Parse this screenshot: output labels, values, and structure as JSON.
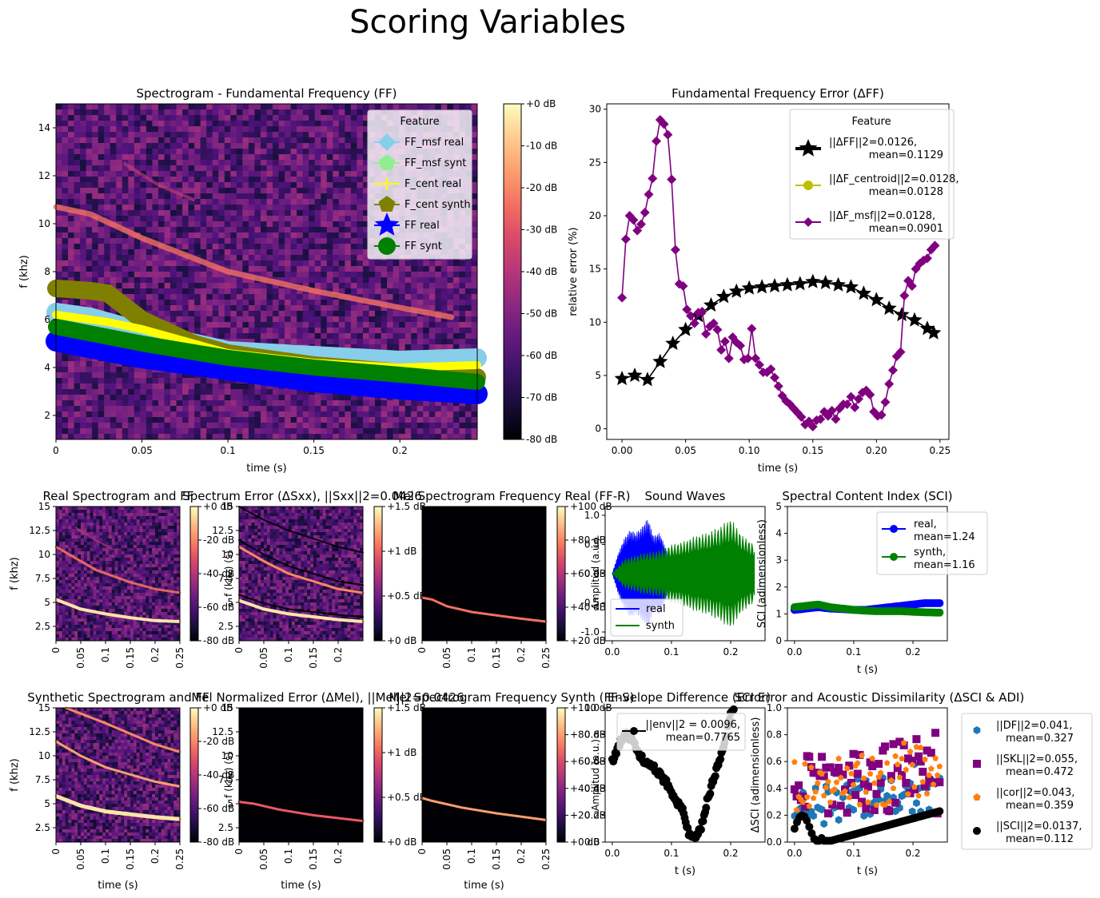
{
  "suptitle": "Scoring Variables",
  "colors": {
    "ff_msf_real": "#87ceeb",
    "ff_msf_synt": "#90ee90",
    "f_cent_real": "#ffff00",
    "f_cent_synth": "#808000",
    "ff_real": "#0000ff",
    "ff_synt": "#008000",
    "delta_ff": "#000000",
    "delta_centroid": "#bfbf00",
    "delta_msf": "#800080",
    "real": "#0000ff",
    "synth": "#008000",
    "df": "#1f77b4",
    "skl": "#800080",
    "cor": "#ff7f0e",
    "sci": "#000000"
  },
  "chart_data": [
    {
      "id": "spectrogram_ff",
      "type": "heatmap",
      "title": "Spectrogram - Fundamental Frequency (FF)",
      "xlabel": "time (s)",
      "ylabel": "f (khz)",
      "xlim": [
        0,
        0.245
      ],
      "ylim": [
        1,
        15
      ],
      "xticks": [
        "0",
        "0.05",
        "0.1",
        "0.15",
        "0.2"
      ],
      "yticks": [
        "2",
        "4",
        "6",
        "8",
        "10",
        "12",
        "14"
      ],
      "colorbar_ticks": [
        "+0 dB",
        "-10 dB",
        "-20 dB",
        "-30 dB",
        "-40 dB",
        "-50 dB",
        "-60 dB",
        "-70 dB",
        "-80 dB"
      ],
      "legend_title": "Feature",
      "legend": [
        "FF_msf real",
        "FF_msf synt",
        "F_cent real",
        "F_cent synth",
        "FF real",
        "FF synt"
      ],
      "series": [
        {
          "key": "ff_msf_real",
          "x": [
            0,
            0.02,
            0.05,
            0.1,
            0.15,
            0.2,
            0.245
          ],
          "y": [
            6.3,
            6.1,
            5.5,
            4.7,
            4.5,
            4.3,
            4.4
          ]
        },
        {
          "key": "f_cent_synth",
          "x": [
            0,
            0.02,
            0.03,
            0.05,
            0.08,
            0.1,
            0.15,
            0.2,
            0.245
          ],
          "y": [
            7.3,
            7.2,
            7.1,
            6.0,
            5.0,
            4.6,
            4.1,
            3.8,
            3.6
          ]
        },
        {
          "key": "f_cent_real",
          "x": [
            0,
            0.03,
            0.05,
            0.1,
            0.15,
            0.2,
            0.245
          ],
          "y": [
            6.2,
            5.9,
            5.6,
            4.6,
            4.2,
            4.0,
            4.1
          ]
        },
        {
          "key": "ff_real",
          "x": [
            0,
            0.05,
            0.1,
            0.15,
            0.2,
            0.245
          ],
          "y": [
            5.1,
            4.4,
            3.9,
            3.4,
            3.1,
            2.9
          ]
        },
        {
          "key": "ff_synt",
          "x": [
            0,
            0.05,
            0.1,
            0.15,
            0.2,
            0.245
          ],
          "y": [
            5.7,
            5.0,
            4.4,
            4.0,
            3.7,
            3.4
          ]
        }
      ]
    },
    {
      "id": "ff_error",
      "type": "line",
      "title": "Fundamental Frequency Error (ΔFF)",
      "xlabel": "time (s)",
      "ylabel": "relative error (%)",
      "xlim": [
        -0.012,
        0.257
      ],
      "ylim": [
        -1,
        30.5
      ],
      "xticks": [
        "0.00",
        "0.05",
        "0.10",
        "0.15",
        "0.20",
        "0.25"
      ],
      "yticks": [
        "0",
        "5",
        "10",
        "15",
        "20",
        "25",
        "30"
      ],
      "legend_title": "Feature",
      "legend": [
        "||ΔFF||2=0.0126, mean=0.1129",
        "||ΔF_centroid||2=0.0128, mean=0.0128",
        "||ΔF_msf||2=0.0128, mean=0.0901"
      ],
      "series": [
        {
          "key": "delta_ff",
          "marker": "star",
          "x": [
            0,
            0.01,
            0.02,
            0.03,
            0.04,
            0.05,
            0.06,
            0.07,
            0.08,
            0.09,
            0.1,
            0.11,
            0.12,
            0.13,
            0.14,
            0.15,
            0.16,
            0.17,
            0.18,
            0.19,
            0.2,
            0.21,
            0.22,
            0.23,
            0.24,
            0.245
          ],
          "y": [
            4.7,
            5.0,
            4.6,
            6.3,
            8.0,
            9.3,
            10.6,
            11.6,
            12.4,
            12.9,
            13.2,
            13.3,
            13.4,
            13.5,
            13.6,
            13.8,
            13.7,
            13.5,
            13.3,
            12.7,
            12.1,
            11.3,
            10.7,
            10.2,
            9.4,
            9.0
          ]
        },
        {
          "key": "delta_msf",
          "marker": "diamond",
          "x": [
            0,
            0.003,
            0.006,
            0.009,
            0.012,
            0.015,
            0.018,
            0.021,
            0.024,
            0.027,
            0.03,
            0.033,
            0.036,
            0.039,
            0.042,
            0.045,
            0.048,
            0.051,
            0.054,
            0.057,
            0.06,
            0.063,
            0.066,
            0.069,
            0.072,
            0.075,
            0.078,
            0.081,
            0.084,
            0.087,
            0.09,
            0.093,
            0.096,
            0.099,
            0.102,
            0.105,
            0.108,
            0.111,
            0.114,
            0.117,
            0.12,
            0.123,
            0.126,
            0.129,
            0.132,
            0.135,
            0.138,
            0.141,
            0.144,
            0.147,
            0.15,
            0.153,
            0.156,
            0.159,
            0.162,
            0.165,
            0.168,
            0.171,
            0.174,
            0.177,
            0.18,
            0.183,
            0.186,
            0.189,
            0.192,
            0.195,
            0.198,
            0.201,
            0.204,
            0.207,
            0.21,
            0.213,
            0.216,
            0.219,
            0.222,
            0.225,
            0.228,
            0.231,
            0.234,
            0.237,
            0.24,
            0.243,
            0.246
          ],
          "y": [
            12.3,
            17.8,
            20.0,
            19.6,
            18.6,
            19.2,
            20.3,
            22.0,
            23.5,
            27.0,
            29.0,
            28.6,
            27.6,
            23.4,
            16.8,
            13.6,
            13.4,
            11.2,
            10.6,
            9.9,
            10.9,
            11.0,
            8.9,
            9.6,
            9.9,
            9.3,
            7.4,
            8.2,
            6.6,
            8.6,
            8.1,
            7.8,
            6.5,
            6.6,
            9.4,
            6.6,
            6.0,
            5.3,
            5.3,
            5.6,
            4.8,
            4.0,
            3.1,
            2.6,
            2.3,
            1.9,
            1.5,
            1.1,
            0.4,
            0.7,
            0.2,
            0.8,
            0.9,
            1.6,
            1.2,
            1.7,
            0.9,
            1.9,
            2.3,
            2.3,
            3.0,
            2.0,
            2.8,
            3.4,
            3.6,
            3.2,
            1.6,
            1.2,
            1.3,
            2.5,
            4.2,
            5.5,
            6.8,
            7.2,
            12.5,
            13.9,
            13.4,
            15.0,
            15.5,
            15.8,
            16.0,
            16.8,
            17.2
          ]
        }
      ]
    },
    {
      "id": "real_spec_small",
      "type": "heatmap",
      "title": "Real Spectrogram and FF",
      "ylabel": "f (khz)",
      "xticks": [
        "0",
        "0.05",
        "0.1",
        "0.15",
        "0.2",
        "0.25"
      ],
      "yticks": [
        "2.5",
        "5",
        "7.5",
        "10",
        "12.5",
        "15"
      ],
      "colorbar_ticks": [
        "+0 dB",
        "-20 dB",
        "-40 dB",
        "-60 dB",
        "-80 dB"
      ],
      "colorbar_label": "f (khz) (s)"
    },
    {
      "id": "spectrum_error",
      "type": "heatmap",
      "title": "Spectrum Error (ΔSxx), ||Sxx||2=0.0426",
      "yticks": [
        "2.5",
        "5",
        "7.5",
        "10",
        "12.5",
        "15"
      ],
      "xticks": [
        "0",
        "0.05",
        "0.1",
        "0.15",
        "0.2"
      ],
      "colorbar_ticks": [
        "+1.5 dB",
        "+1 dB",
        "+0.5 dB",
        "+0 dB"
      ]
    },
    {
      "id": "mel_real",
      "type": "heatmap",
      "title": "Mel Spectrogram Frequency Real (FF-R)",
      "xticks": [
        "0",
        "0.05",
        "0.1",
        "0.15",
        "0.2",
        "0.25"
      ],
      "colorbar_ticks": [
        "+100 dB",
        "+80 dB",
        "+60 dB",
        "+40 dB",
        "+20 dB"
      ],
      "colorbar_label": "Amplitud (a.u.)"
    },
    {
      "id": "sound_waves",
      "type": "area",
      "title": "Sound Waves",
      "xticks": [
        "0.0",
        "0.1",
        "0.2"
      ],
      "yticks": [
        "-1.0",
        "-0.5",
        "0.0",
        "0.5",
        "1.0"
      ],
      "legend": [
        "real",
        "synth"
      ],
      "series": [
        {
          "key": "real",
          "x": [
            0,
            0.01,
            0.02,
            0.03,
            0.04,
            0.05,
            0.06,
            0.07,
            0.08,
            0.09,
            0.1
          ],
          "y": [
            0,
            0.35,
            0.6,
            0.75,
            0.7,
            0.8,
            0.95,
            0.65,
            0.7,
            0.45,
            0.1
          ]
        },
        {
          "key": "synth",
          "x": [
            0,
            0.02,
            0.05,
            0.08,
            0.1,
            0.12,
            0.14,
            0.16,
            0.18,
            0.2,
            0.22,
            0.24
          ],
          "y": [
            0,
            0.25,
            0.35,
            0.4,
            0.5,
            0.55,
            0.65,
            0.7,
            0.8,
            0.95,
            0.65,
            0.5
          ]
        }
      ]
    },
    {
      "id": "sci",
      "type": "scatter",
      "title": "Spectral Content Index (SCI)",
      "xlabel": "t (s)",
      "ylabel": "SCI (adimensionless)",
      "xticks": [
        "0.0",
        "0.1",
        "0.2"
      ],
      "yticks": [
        "0",
        "1",
        "2",
        "3",
        "4",
        "5"
      ],
      "legend": [
        "real, mean=1.24",
        "synth, mean=1.16"
      ],
      "series": [
        {
          "key": "real",
          "x": [
            0,
            0.02,
            0.04,
            0.06,
            0.08,
            0.1,
            0.12,
            0.14,
            0.16,
            0.18,
            0.2,
            0.22,
            0.24
          ],
          "y": [
            1.15,
            1.2,
            1.25,
            1.2,
            1.18,
            1.15,
            1.15,
            1.2,
            1.25,
            1.3,
            1.35,
            1.4,
            1.4
          ]
        },
        {
          "key": "synth",
          "x": [
            0,
            0.02,
            0.04,
            0.06,
            0.08,
            0.1,
            0.12,
            0.14,
            0.16,
            0.18,
            0.2,
            0.22,
            0.24
          ],
          "y": [
            1.25,
            1.3,
            1.35,
            1.25,
            1.2,
            1.15,
            1.12,
            1.1,
            1.1,
            1.1,
            1.08,
            1.06,
            1.05
          ]
        }
      ]
    },
    {
      "id": "synth_spec_small",
      "type": "heatmap",
      "title": "Synthetic Spectrogram and FF",
      "xlabel": "time (s)",
      "ylabel": "f (khz)",
      "xticks": [
        "0",
        "0.05",
        "0.1",
        "0.15",
        "0.2",
        "0.25"
      ],
      "yticks": [
        "2.5",
        "5",
        "7.5",
        "10",
        "12.5",
        "15"
      ],
      "colorbar_ticks": [
        "+0 dB",
        "-20 dB",
        "-40 dB",
        "-60 dB",
        "-80 dB"
      ],
      "colorbar_label": "f (khz) (s)"
    },
    {
      "id": "mel_error",
      "type": "heatmap",
      "title": "Mel Normalized Error (ΔMel), ||Mel||2=0.0426",
      "xlabel": "time (s)",
      "yticks": [
        "2.5",
        "5",
        "7.5",
        "10",
        "12.5",
        "15"
      ],
      "xticks": [
        "0",
        "0.05",
        "0.1",
        "0.15",
        "0.2"
      ],
      "colorbar_ticks": [
        "+1.5 dB",
        "+1 dB",
        "+0.5 dB",
        "+0 dB"
      ]
    },
    {
      "id": "mel_synth",
      "type": "heatmap",
      "title": "Mel Spectrogram Frequency Synth (FF-S)",
      "xlabel": "time (s)",
      "xticks": [
        "0",
        "0.05",
        "0.1",
        "0.15",
        "0.2",
        "0.25"
      ],
      "colorbar_ticks": [
        "+100 dB",
        "+80 dB",
        "+60 dB",
        "+40 dB",
        "+20 dB",
        "+0 dB"
      ],
      "colorbar_label": "Amplitud (a.u.)"
    },
    {
      "id": "envelope",
      "type": "line",
      "title": "Envelope Difference (Error)",
      "xlabel": "t (s)",
      "xticks": [
        "0.0",
        "0.1",
        "0.2"
      ],
      "yticks": [
        "0.0",
        "0.2",
        "0.4",
        "0.6",
        "0.8",
        "1.0"
      ],
      "legend": [
        "||env||2 = 0.0096, mean=0.7765"
      ],
      "series": [
        {
          "key": "sci",
          "x": [
            0,
            0.01,
            0.02,
            0.03,
            0.04,
            0.05,
            0.06,
            0.07,
            0.08,
            0.09,
            0.1,
            0.11,
            0.12,
            0.13,
            0.14,
            0.15,
            0.16,
            0.17,
            0.18,
            0.19,
            0.2,
            0.21
          ],
          "y": [
            0.6,
            0.72,
            0.8,
            0.78,
            0.7,
            0.62,
            0.6,
            0.55,
            0.5,
            0.45,
            0.38,
            0.3,
            0.22,
            0.05,
            0.02,
            0.1,
            0.3,
            0.45,
            0.6,
            0.75,
            0.95,
            1.0
          ]
        }
      ]
    },
    {
      "id": "sci_adi",
      "type": "scatter",
      "title": "SCI Error and Acoustic Dissimilarity (ΔSCI & ADI)",
      "xlabel": "t (s)",
      "ylabel": "ΔSCI (adimensionless)",
      "xticks": [
        "0.0",
        "0.1",
        "0.2"
      ],
      "yticks": [
        "0.0",
        "0.2",
        "0.4",
        "0.6",
        "0.8",
        "1.0"
      ],
      "legend": [
        "||DF||2=0.041, mean=0.327",
        "||SKL||2=0.055, mean=0.472",
        "||cor||2=0.043, mean=0.359",
        "||SCI||2=0.0137, mean=0.112"
      ]
    }
  ]
}
